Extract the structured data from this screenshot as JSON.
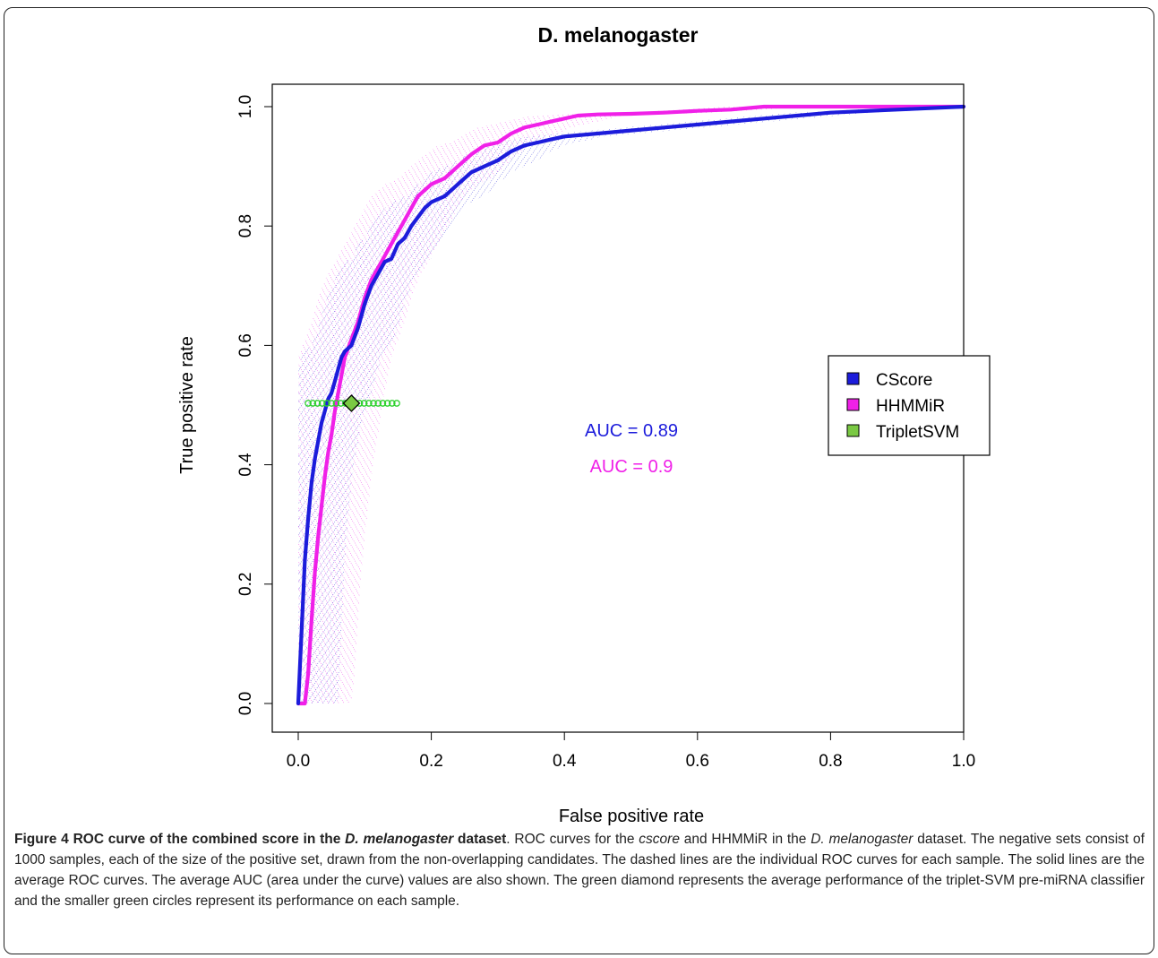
{
  "chart_data": {
    "type": "line",
    "title": "D. melanogaster",
    "xlabel": "False positive rate",
    "ylabel": "True positive rate",
    "xlim": [
      0,
      1
    ],
    "ylim": [
      0,
      1
    ],
    "x_ticks": [
      "0.0",
      "0.2",
      "0.4",
      "0.6",
      "0.8",
      "1.0"
    ],
    "y_ticks": [
      "0.0",
      "0.2",
      "0.4",
      "0.6",
      "0.8",
      "1.0"
    ],
    "grid": false,
    "legend_position": "right",
    "series": [
      {
        "name": "CScore",
        "color": "#1c1cdb",
        "x": [
          0,
          0.005,
          0.01,
          0.015,
          0.02,
          0.025,
          0.03,
          0.035,
          0.04,
          0.045,
          0.05,
          0.055,
          0.06,
          0.065,
          0.07,
          0.08,
          0.09,
          0.1,
          0.11,
          0.12,
          0.13,
          0.14,
          0.15,
          0.16,
          0.17,
          0.18,
          0.19,
          0.2,
          0.22,
          0.24,
          0.26,
          0.28,
          0.3,
          0.32,
          0.34,
          0.36,
          0.38,
          0.4,
          0.45,
          0.5,
          0.55,
          0.6,
          0.65,
          0.7,
          0.75,
          0.8,
          0.9,
          1.0
        ],
        "y": [
          0,
          0.12,
          0.24,
          0.31,
          0.37,
          0.41,
          0.44,
          0.47,
          0.49,
          0.51,
          0.52,
          0.54,
          0.56,
          0.58,
          0.59,
          0.6,
          0.63,
          0.67,
          0.7,
          0.72,
          0.74,
          0.745,
          0.77,
          0.78,
          0.8,
          0.815,
          0.83,
          0.84,
          0.85,
          0.87,
          0.89,
          0.9,
          0.91,
          0.925,
          0.935,
          0.94,
          0.945,
          0.95,
          0.955,
          0.96,
          0.965,
          0.97,
          0.975,
          0.98,
          0.985,
          0.99,
          0.995,
          1.0
        ]
      },
      {
        "name": "HHMMiR",
        "color": "#f020e8",
        "x": [
          0,
          0.005,
          0.01,
          0.015,
          0.02,
          0.025,
          0.03,
          0.035,
          0.04,
          0.045,
          0.05,
          0.055,
          0.06,
          0.065,
          0.07,
          0.08,
          0.09,
          0.1,
          0.11,
          0.12,
          0.13,
          0.14,
          0.15,
          0.16,
          0.17,
          0.18,
          0.19,
          0.2,
          0.22,
          0.24,
          0.26,
          0.28,
          0.3,
          0.32,
          0.34,
          0.36,
          0.38,
          0.4,
          0.42,
          0.45,
          0.5,
          0.55,
          0.6,
          0.65,
          0.7,
          0.8,
          0.9,
          1.0
        ],
        "y": [
          0,
          0.0,
          0.0,
          0.05,
          0.14,
          0.22,
          0.28,
          0.33,
          0.38,
          0.42,
          0.45,
          0.49,
          0.52,
          0.55,
          0.58,
          0.61,
          0.64,
          0.68,
          0.71,
          0.73,
          0.75,
          0.77,
          0.79,
          0.81,
          0.83,
          0.85,
          0.86,
          0.87,
          0.88,
          0.9,
          0.92,
          0.935,
          0.94,
          0.955,
          0.965,
          0.97,
          0.975,
          0.98,
          0.985,
          0.987,
          0.988,
          0.99,
          0.993,
          0.995,
          1.0,
          1.0,
          1.0,
          1.0
        ]
      }
    ],
    "points": [
      {
        "name": "TripletSVM",
        "color": "#7ac943",
        "x": 0.08,
        "y": 0.503,
        "sample_x": [
          0.015,
          0.022,
          0.029,
          0.036,
          0.043,
          0.05,
          0.057,
          0.064,
          0.071,
          0.078,
          0.085,
          0.092,
          0.099,
          0.106,
          0.113,
          0.12,
          0.127,
          0.134,
          0.141,
          0.148
        ]
      }
    ],
    "legend": [
      "CScore",
      "HHMMiR",
      "TripletSVM"
    ],
    "annotations": [
      {
        "text": "AUC = 0.89",
        "color": "#1c1cdb"
      },
      {
        "text": "AUC = 0.9",
        "color": "#f020e8"
      }
    ]
  },
  "caption": {
    "label": "Figure 4 ",
    "title_pre": "ROC curve of the combined score in the ",
    "title_species": "D. melanogaster",
    "title_post": " dataset",
    "body_1": ". ROC curves for the ",
    "body_cscore": "cscore",
    "body_2": " and HHMMiR in the ",
    "body_species": "D. melanogaster",
    "body_3": " dataset. The negative sets consist of 1000 samples, each of the size of the positive set, drawn from the non-overlapping candidates. The dashed lines are the individual ROC curves for each sample. The solid lines are the average ROC curves. The average AUC (area under the curve) values are also shown. The green diamond represents the average performance of the triplet-SVM pre-miRNA classifier and the smaller green circles represent its performance on each sample."
  }
}
